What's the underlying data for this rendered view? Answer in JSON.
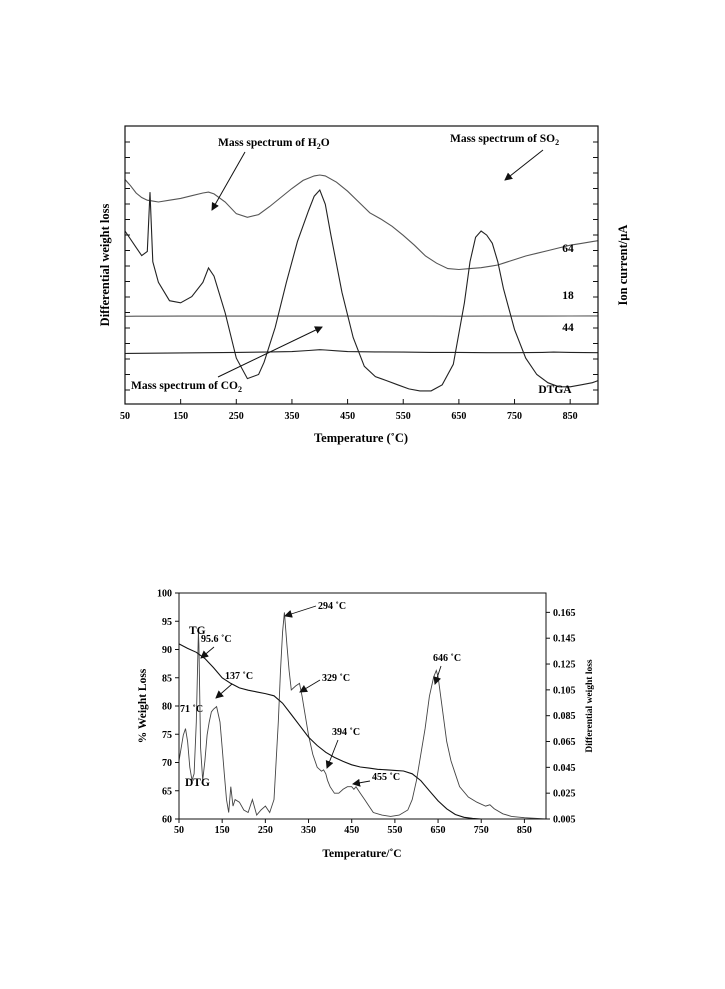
{
  "chart_data": [
    {
      "type": "line",
      "title": "",
      "xlabel": "Temperature (˚C)",
      "ylabel_left": "Differential weight loss",
      "ylabel_right": "Ion current/µA",
      "xlim": [
        50,
        900
      ],
      "xticks": [
        50,
        150,
        250,
        350,
        450,
        550,
        650,
        750,
        850
      ],
      "series": [
        {
          "name": "64",
          "x": [
            50,
            60,
            70,
            80,
            90,
            100,
            110,
            130,
            150,
            170,
            190,
            200,
            210,
            230,
            250,
            270,
            290,
            310,
            330,
            350,
            370,
            390,
            400,
            410,
            430,
            450,
            470,
            490,
            510,
            530,
            550,
            570,
            590,
            610,
            630,
            650,
            670,
            690,
            710,
            720,
            730,
            750,
            770,
            790,
            810,
            830,
            850,
            870,
            890,
            900
          ],
          "y": [
            0.95,
            0.88,
            0.8,
            0.75,
            0.72,
            0.71,
            0.7,
            0.72,
            0.74,
            0.77,
            0.8,
            0.81,
            0.79,
            0.7,
            0.57,
            0.53,
            0.56,
            0.65,
            0.75,
            0.85,
            0.94,
            0.99,
            1.0,
            0.99,
            0.92,
            0.82,
            0.7,
            0.58,
            0.51,
            0.43,
            0.33,
            0.22,
            0.1,
            0.02,
            -0.04,
            -0.05,
            -0.04,
            -0.03,
            -0.01,
            0.0,
            0.02,
            0.06,
            0.1,
            0.13,
            0.16,
            0.19,
            0.22,
            0.24,
            0.26,
            0.27
          ]
        },
        {
          "name": "18",
          "x": [
            50,
            70,
            100,
            150,
            200,
            250,
            300,
            350,
            400,
            450,
            500,
            550,
            600,
            650,
            700,
            750,
            800,
            850,
            900
          ],
          "y": [
            0.75,
            0.755,
            0.76,
            0.77,
            0.775,
            0.78,
            0.78,
            0.785,
            0.785,
            0.785,
            0.78,
            0.775,
            0.77,
            0.765,
            0.77,
            0.78,
            0.79,
            0.8,
            0.81
          ]
        },
        {
          "name": "44",
          "x": [
            50,
            100,
            150,
            200,
            250,
            300,
            350,
            380,
            400,
            410,
            430,
            450,
            500,
            550,
            600,
            650,
            700,
            750,
            800,
            820,
            850,
            900
          ],
          "y": [
            0.13,
            0.14,
            0.15,
            0.16,
            0.17,
            0.18,
            0.2,
            0.24,
            0.27,
            0.26,
            0.23,
            0.2,
            0.19,
            0.18,
            0.17,
            0.17,
            0.16,
            0.16,
            0.17,
            0.18,
            0.17,
            0.16
          ]
        },
        {
          "name": "DTGA",
          "x": [
            50,
            70,
            80,
            90,
            95,
            100,
            110,
            130,
            150,
            170,
            190,
            200,
            210,
            230,
            250,
            270,
            290,
            300,
            320,
            340,
            360,
            380,
            390,
            400,
            410,
            420,
            440,
            460,
            480,
            500,
            520,
            540,
            560,
            580,
            600,
            620,
            640,
            660,
            670,
            680,
            690,
            700,
            710,
            720,
            730,
            750,
            770,
            790,
            810,
            820,
            830,
            850,
            870,
            890,
            900
          ],
          "y": [
            0.8,
            0.72,
            0.68,
            0.7,
            0.99,
            0.65,
            0.55,
            0.46,
            0.45,
            0.48,
            0.55,
            0.62,
            0.58,
            0.4,
            0.18,
            0.08,
            0.1,
            0.16,
            0.33,
            0.55,
            0.75,
            0.9,
            0.97,
            1.0,
            0.93,
            0.78,
            0.5,
            0.28,
            0.14,
            0.09,
            0.07,
            0.05,
            0.03,
            0.02,
            0.02,
            0.05,
            0.15,
            0.45,
            0.65,
            0.77,
            0.8,
            0.78,
            0.74,
            0.65,
            0.52,
            0.32,
            0.18,
            0.1,
            0.06,
            0.05,
            0.04,
            0.04,
            0.05,
            0.06,
            0.07
          ]
        }
      ],
      "annotations": [
        {
          "text": "Mass spectrum of H",
          "subscript": "2",
          "suffix": "O"
        },
        {
          "text": "Mass spectrum of SO",
          "subscript": "2",
          "suffix": ""
        },
        {
          "text": "Mass spectrum of CO",
          "subscript": "2",
          "suffix": ""
        }
      ]
    },
    {
      "type": "line",
      "title": "",
      "xlabel": "Temperature/˚C",
      "ylabel_left": "% Weight Loss",
      "ylabel_right": "Differential weight loss",
      "xlim": [
        50,
        900
      ],
      "ylim_left": [
        60,
        100
      ],
      "ylim_right": [
        0.005,
        0.18
      ],
      "xticks": [
        50,
        150,
        250,
        350,
        450,
        550,
        650,
        750,
        850
      ],
      "yticks_left": [
        60,
        65,
        70,
        75,
        80,
        85,
        90,
        95,
        100
      ],
      "yticks_right": [
        "0.005",
        "0.025",
        "0.045",
        "0.065",
        "0.085",
        "0.105",
        "0.125",
        "0.145",
        "0.165"
      ],
      "series": [
        {
          "name": "TG",
          "x": [
            50,
            70,
            90,
            110,
            130,
            150,
            170,
            190,
            210,
            230,
            250,
            270,
            290,
            310,
            330,
            350,
            370,
            390,
            410,
            430,
            450,
            470,
            490,
            510,
            530,
            550,
            570,
            590,
            610,
            630,
            650,
            670,
            690,
            710,
            730,
            750,
            770,
            790,
            810,
            850,
            900
          ],
          "y": [
            91,
            90.2,
            89.5,
            88.4,
            86.8,
            85.0,
            84.0,
            83.2,
            82.8,
            82.5,
            82.2,
            81.8,
            80.5,
            78.5,
            76.5,
            74.5,
            73.0,
            71.8,
            70.9,
            70.2,
            69.6,
            69.2,
            69.0,
            68.8,
            68.7,
            68.6,
            68.5,
            68.0,
            66.8,
            65.0,
            63.2,
            61.8,
            60.8,
            60.3,
            60.1,
            60.0,
            60.0,
            60.0,
            60.0,
            60.0,
            60.0
          ]
        },
        {
          "name": "DTG",
          "x": [
            50,
            60,
            65,
            70,
            75,
            80,
            85,
            90,
            95,
            96,
            100,
            105,
            110,
            115,
            120,
            125,
            130,
            137,
            145,
            150,
            155,
            160,
            165,
            170,
            175,
            180,
            190,
            200,
            210,
            220,
            230,
            240,
            250,
            260,
            270,
            280,
            285,
            290,
            294,
            300,
            305,
            310,
            320,
            329,
            335,
            340,
            350,
            360,
            370,
            380,
            385,
            390,
            394,
            400,
            410,
            420,
            430,
            440,
            450,
            455,
            460,
            470,
            480,
            490,
            500,
            520,
            540,
            560,
            580,
            590,
            600,
            610,
            620,
            630,
            640,
            646,
            650,
            660,
            670,
            680,
            690,
            700,
            720,
            740,
            760,
            770,
            780,
            800,
            820,
            850,
            900
          ],
          "y": [
            0.05,
            0.07,
            0.075,
            0.065,
            0.045,
            0.035,
            0.04,
            0.08,
            0.15,
            0.14,
            0.06,
            0.035,
            0.05,
            0.07,
            0.08,
            0.088,
            0.09,
            0.092,
            0.08,
            0.06,
            0.04,
            0.02,
            0.01,
            0.03,
            0.015,
            0.02,
            0.018,
            0.012,
            0.01,
            0.02,
            0.008,
            0.012,
            0.015,
            0.01,
            0.02,
            0.08,
            0.12,
            0.15,
            0.165,
            0.14,
            0.12,
            0.105,
            0.108,
            0.11,
            0.1,
            0.09,
            0.07,
            0.055,
            0.045,
            0.042,
            0.043,
            0.04,
            0.035,
            0.03,
            0.025,
            0.025,
            0.028,
            0.03,
            0.03,
            0.028,
            0.03,
            0.025,
            0.02,
            0.015,
            0.01,
            0.008,
            0.007,
            0.008,
            0.012,
            0.02,
            0.035,
            0.055,
            0.075,
            0.1,
            0.115,
            0.12,
            0.115,
            0.09,
            0.065,
            0.05,
            0.04,
            0.03,
            0.022,
            0.018,
            0.015,
            0.016,
            0.013,
            0.009,
            0.007,
            0.006,
            0.005
          ]
        }
      ],
      "annotations": [
        "71 ˚C",
        "95.6 ˚C",
        "137 ˚C",
        "294 ˚C",
        "329 ˚C",
        "394 ˚C",
        "455 ˚C",
        "646 ˚C"
      ]
    }
  ]
}
